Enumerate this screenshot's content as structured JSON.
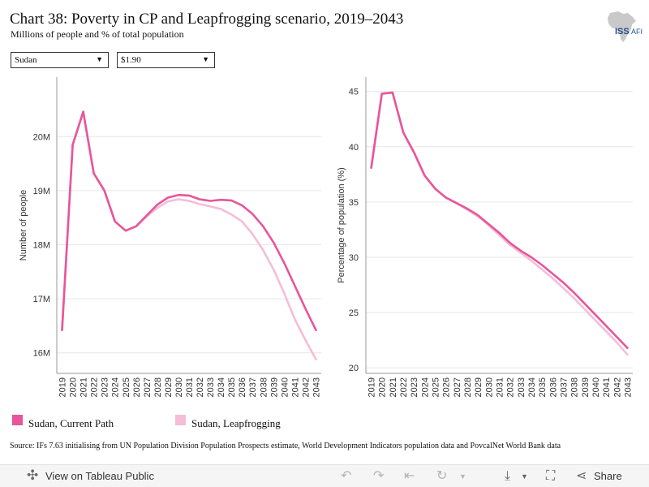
{
  "header": {
    "title": "Chart 38: Poverty in CP and Leapfrogging scenario, 2019–2043",
    "subtitle": "Millions of people and % of total population",
    "logo_text": "ISS",
    "logo_text2": "AFI"
  },
  "filters": {
    "country": "Sudan",
    "poverty_line": "$1.90"
  },
  "colors": {
    "current_path": "#e8559a",
    "leapfrogging": "#f5bdd8",
    "axis": "#555555",
    "grid": "#e6e6e6",
    "logo_map": "#c9c9c9",
    "logo_text": "#1f4e8c"
  },
  "chart_data": [
    {
      "type": "line",
      "ylabel": "Number of people",
      "xlabel": "",
      "x": [
        2019,
        2020,
        2021,
        2022,
        2023,
        2024,
        2025,
        2026,
        2027,
        2028,
        2029,
        2030,
        2031,
        2032,
        2033,
        2034,
        2035,
        2036,
        2037,
        2038,
        2039,
        2040,
        2041,
        2042,
        2043
      ],
      "ylim": [
        15.62,
        21.1
      ],
      "yticks": [
        16,
        17,
        18,
        19,
        20
      ],
      "ytick_labels": [
        "16M",
        "17M",
        "18M",
        "19M",
        "20M"
      ],
      "series": [
        {
          "name": "Sudan, Current Path",
          "color": "#e8559a",
          "values": [
            16.42,
            19.85,
            20.46,
            19.32,
            19.0,
            18.43,
            18.26,
            18.34,
            18.54,
            18.74,
            18.87,
            18.92,
            18.91,
            18.84,
            18.81,
            18.83,
            18.82,
            18.73,
            18.57,
            18.34,
            18.04,
            17.66,
            17.24,
            16.82,
            16.42
          ]
        },
        {
          "name": "Sudan, Leapfrogging",
          "color": "#f5bdd8",
          "values": [
            16.42,
            19.85,
            20.46,
            19.32,
            19.0,
            18.43,
            18.26,
            18.34,
            18.52,
            18.68,
            18.8,
            18.84,
            18.81,
            18.75,
            18.71,
            18.66,
            18.56,
            18.43,
            18.2,
            17.9,
            17.54,
            17.1,
            16.62,
            16.24,
            15.88
          ]
        }
      ]
    },
    {
      "type": "line",
      "ylabel": "Percentage of population (%)",
      "xlabel": "",
      "x": [
        2019,
        2020,
        2021,
        2022,
        2023,
        2024,
        2025,
        2026,
        2027,
        2028,
        2029,
        2030,
        2031,
        2032,
        2033,
        2034,
        2035,
        2036,
        2037,
        2038,
        2039,
        2040,
        2041,
        2042,
        2043
      ],
      "ylim": [
        19.5,
        46.3
      ],
      "yticks": [
        20,
        25,
        30,
        35,
        40,
        45
      ],
      "ytick_labels": [
        "20",
        "25",
        "30",
        "35",
        "40",
        "45"
      ],
      "series": [
        {
          "name": "Sudan, Current Path",
          "color": "#e8559a",
          "values": [
            38.1,
            44.8,
            44.9,
            41.3,
            39.5,
            37.4,
            36.2,
            35.4,
            34.9,
            34.4,
            33.8,
            33.0,
            32.2,
            31.3,
            30.6,
            30.0,
            29.3,
            28.5,
            27.7,
            26.8,
            25.8,
            24.8,
            23.8,
            22.8,
            21.8
          ]
        },
        {
          "name": "Sudan, Leapfrogging",
          "color": "#f5bdd8",
          "values": [
            38.1,
            44.8,
            44.9,
            41.3,
            39.5,
            37.4,
            36.2,
            35.4,
            34.9,
            34.3,
            33.7,
            32.9,
            32.0,
            31.1,
            30.4,
            29.7,
            28.9,
            28.1,
            27.2,
            26.3,
            25.3,
            24.3,
            23.3,
            22.3,
            21.2
          ]
        }
      ]
    }
  ],
  "legend": {
    "items": [
      {
        "label": "Sudan, Current Path",
        "color": "#e8559a"
      },
      {
        "label": "Sudan, Leapfrogging",
        "color": "#f5bdd8"
      }
    ]
  },
  "source": "Source: IFs 7.63 initialising from UN Population Division Population Prospects estimate, World Development Indicators population data and PovcalNet World Bank data",
  "toolbar": {
    "view_label": "View on Tableau Public",
    "share_label": "Share",
    "icons": [
      "tableau-icon",
      "undo-icon",
      "redo-icon",
      "revert-icon",
      "refresh-icon",
      "download-icon",
      "fullscreen-icon",
      "share-icon"
    ]
  }
}
